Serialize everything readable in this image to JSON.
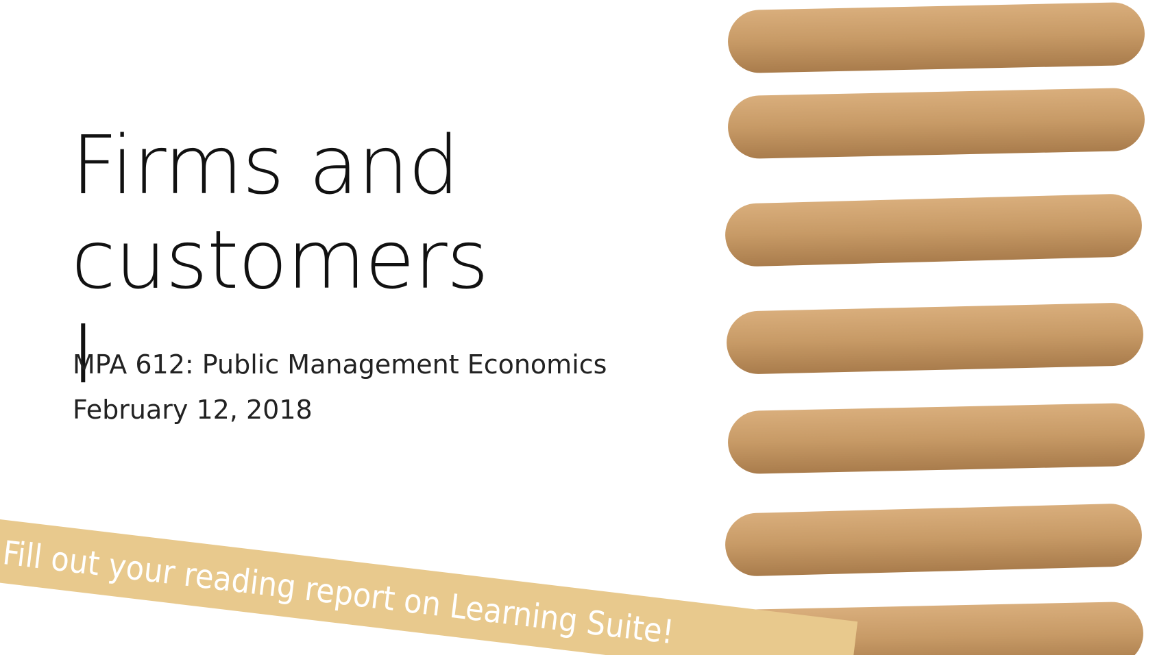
{
  "slide": {
    "title": "Firms and customers I",
    "subtitle": "MPA 612: Public Management Economics",
    "date": "February 12, 2018",
    "banner": "Fill out your reading report on Learning Suite!"
  }
}
